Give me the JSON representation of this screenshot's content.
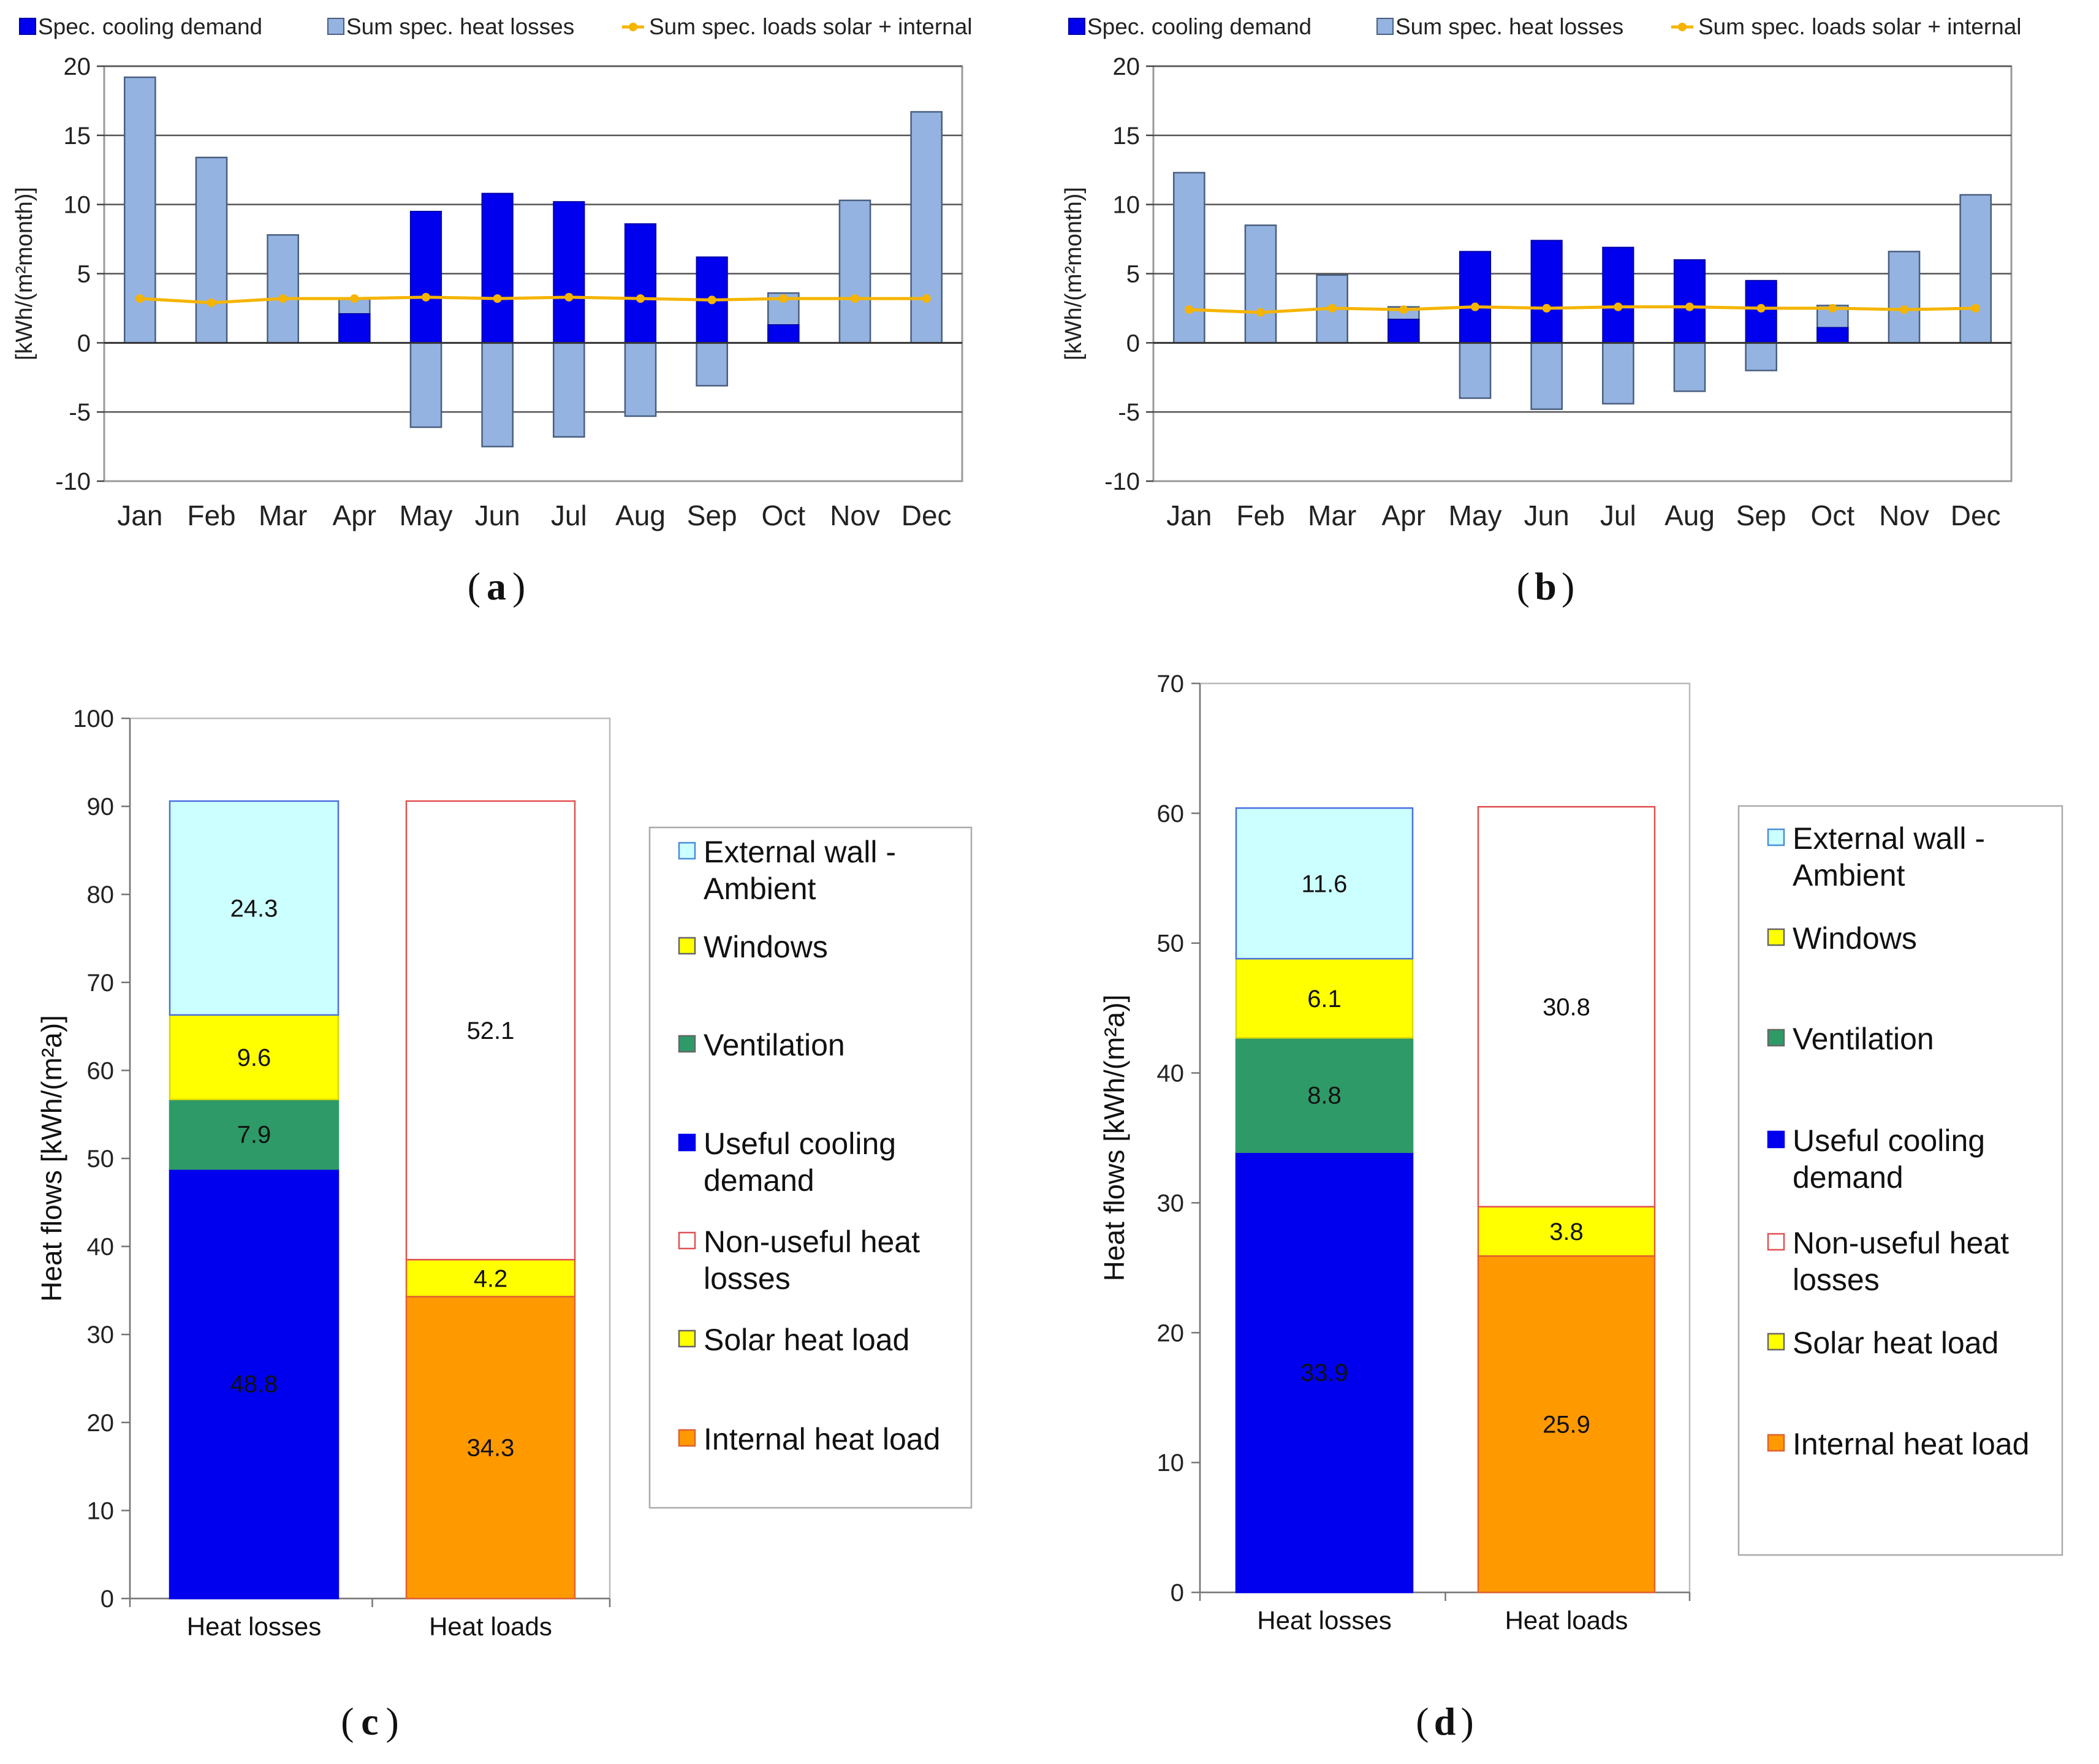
{
  "chart_data": [
    {
      "id": "a",
      "type": "bar",
      "caption": "(a)",
      "caption_letter": "a",
      "ylabel": "[kWh/(m²month)]",
      "ylim": [
        -10,
        20
      ],
      "yticks": [
        -10,
        -5,
        0,
        5,
        10,
        15,
        20
      ],
      "categories": [
        "Jan",
        "Feb",
        "Mar",
        "Apr",
        "May",
        "Jun",
        "Jul",
        "Aug",
        "Sep",
        "Oct",
        "Nov",
        "Dec"
      ],
      "legend": [
        "Spec. cooling demand",
        "Sum spec. heat losses",
        "Sum spec. loads solar + internal"
      ],
      "series": [
        {
          "name": "Spec. cooling demand",
          "color": "#0000ee",
          "values": [
            0,
            0,
            0,
            2.1,
            9.5,
            10.8,
            10.2,
            8.6,
            6.2,
            1.3,
            0,
            0
          ]
        },
        {
          "name": "Sum spec. heat losses",
          "color": "#95b3e0",
          "values": [
            19.2,
            13.4,
            7.8,
            3.2,
            -6.1,
            -7.5,
            -6.8,
            -5.3,
            -3.1,
            3.6,
            10.3,
            16.7
          ]
        },
        {
          "name": "Sum spec. loads solar + internal",
          "color": "#f5b400",
          "values": [
            3.2,
            2.9,
            3.2,
            3.2,
            3.3,
            3.2,
            3.3,
            3.2,
            3.1,
            3.2,
            3.2,
            3.2
          ]
        }
      ]
    },
    {
      "id": "b",
      "type": "bar",
      "caption": "(b)",
      "caption_letter": "b",
      "ylabel": "[kWh/(m²month)]",
      "ylim": [
        -10,
        20
      ],
      "yticks": [
        -10,
        -5,
        0,
        5,
        10,
        15,
        20
      ],
      "categories": [
        "Jan",
        "Feb",
        "Mar",
        "Apr",
        "May",
        "Jun",
        "Jul",
        "Aug",
        "Sep",
        "Oct",
        "Nov",
        "Dec"
      ],
      "legend": [
        "Spec. cooling demand",
        "Sum spec. heat losses",
        "Sum spec. loads solar + internal"
      ],
      "series": [
        {
          "name": "Spec. cooling demand",
          "color": "#0000ee",
          "values": [
            0,
            0,
            0,
            1.7,
            6.6,
            7.4,
            6.9,
            6.0,
            4.5,
            1.1,
            0,
            0
          ]
        },
        {
          "name": "Sum spec. heat losses",
          "color": "#95b3e0",
          "values": [
            12.3,
            8.5,
            4.9,
            2.6,
            -4.0,
            -4.8,
            -4.4,
            -3.5,
            -2.0,
            2.7,
            6.6,
            10.7
          ]
        },
        {
          "name": "Sum spec. loads solar + internal",
          "color": "#f5b400",
          "values": [
            2.4,
            2.2,
            2.5,
            2.4,
            2.6,
            2.5,
            2.6,
            2.6,
            2.5,
            2.5,
            2.4,
            2.5
          ]
        }
      ]
    },
    {
      "id": "c",
      "type": "stacked-bar",
      "caption": "(c)",
      "caption_letter": "c",
      "ylabel": "Heat flows [kWh/(m²a)]",
      "ylim": [
        0,
        100
      ],
      "yticks": [
        0,
        10,
        20,
        30,
        40,
        50,
        60,
        70,
        80,
        90,
        100
      ],
      "categories": [
        "Heat losses",
        "Heat loads"
      ],
      "stacks": [
        [
          {
            "name": "Useful cooling demand",
            "value": 48.8,
            "label": "48.8",
            "color": "#0000ee",
            "stroke": "#0000ee"
          },
          {
            "name": "Ventilation",
            "value": 7.9,
            "label": "7.9",
            "color": "#2e9a68",
            "stroke": "#2e9a68"
          },
          {
            "name": "Windows",
            "value": 9.6,
            "label": "9.6",
            "color": "#ffff00",
            "stroke": "#d8d800"
          },
          {
            "name": "External wall - Ambient",
            "value": 24.3,
            "label": "24.3",
            "color": "#ccffff",
            "stroke": "#4a6fe0"
          }
        ],
        [
          {
            "name": "Internal heat load",
            "value": 34.3,
            "label": "34.3",
            "color": "#ff9900",
            "stroke": "#e06030"
          },
          {
            "name": "Solar heat load",
            "value": 4.2,
            "label": "4.2",
            "color": "#ffff00",
            "stroke": "#e06030"
          },
          {
            "name": "Non-useful heat losses",
            "value": 52.1,
            "label": "52.1",
            "color": "#ffffff",
            "stroke": "#e05050"
          }
        ]
      ],
      "legend": [
        {
          "lines": [
            "External wall -",
            "Ambient"
          ],
          "color": "#ccffff",
          "stroke": "#4a8ae0"
        },
        {
          "lines": [
            "Windows"
          ],
          "color": "#ffff00",
          "stroke": "#666"
        },
        {
          "lines": [
            "Ventilation"
          ],
          "color": "#2e9a68",
          "stroke": "#666"
        },
        {
          "lines": [
            "Useful cooling",
            "demand"
          ],
          "color": "#0000ee",
          "stroke": "#0000ee"
        },
        {
          "lines": [
            "Non-useful heat",
            "losses"
          ],
          "color": "#ffffff",
          "stroke": "#e05050"
        },
        {
          "lines": [
            "Solar heat load"
          ],
          "color": "#ffff00",
          "stroke": "#666"
        },
        {
          "lines": [
            "Internal heat load"
          ],
          "color": "#ff9900",
          "stroke": "#e06030"
        }
      ]
    },
    {
      "id": "d",
      "type": "stacked-bar",
      "caption": "(d)",
      "caption_letter": "d",
      "ylabel": "Heat flows [kWh/(m²a)]",
      "ylim": [
        0,
        70
      ],
      "yticks": [
        0,
        10,
        20,
        30,
        40,
        50,
        60,
        70
      ],
      "categories": [
        "Heat losses",
        "Heat loads"
      ],
      "stacks": [
        [
          {
            "name": "Useful cooling demand",
            "value": 33.9,
            "label": "33.9",
            "color": "#0000ee",
            "stroke": "#0000ee"
          },
          {
            "name": "Ventilation",
            "value": 8.8,
            "label": "8.8",
            "color": "#2e9a68",
            "stroke": "#2e9a68"
          },
          {
            "name": "Windows",
            "value": 6.1,
            "label": "6.1",
            "color": "#ffff00",
            "stroke": "#d8d800"
          },
          {
            "name": "External wall - Ambient",
            "value": 11.6,
            "label": "11.6",
            "color": "#ccffff",
            "stroke": "#4a6fe0"
          }
        ],
        [
          {
            "name": "Internal heat load",
            "value": 25.9,
            "label": "25.9",
            "color": "#ff9900",
            "stroke": "#e06030"
          },
          {
            "name": "Solar heat load",
            "value": 3.8,
            "label": "3.8",
            "color": "#ffff00",
            "stroke": "#e06030"
          },
          {
            "name": "Non-useful heat losses",
            "value": 30.8,
            "label": "30.8",
            "color": "#ffffff",
            "stroke": "#e05050"
          }
        ]
      ],
      "legend": [
        {
          "lines": [
            "External wall -",
            "Ambient"
          ],
          "color": "#ccffff",
          "stroke": "#4a8ae0"
        },
        {
          "lines": [
            "Windows"
          ],
          "color": "#ffff00",
          "stroke": "#666"
        },
        {
          "lines": [
            "Ventilation"
          ],
          "color": "#2e9a68",
          "stroke": "#666"
        },
        {
          "lines": [
            "Useful cooling",
            "demand"
          ],
          "color": "#0000ee",
          "stroke": "#0000ee"
        },
        {
          "lines": [
            "Non-useful heat",
            "losses"
          ],
          "color": "#ffffff",
          "stroke": "#e05050"
        },
        {
          "lines": [
            "Solar heat load"
          ],
          "color": "#ffff00",
          "stroke": "#666"
        },
        {
          "lines": [
            "Internal heat load"
          ],
          "color": "#ff9900",
          "stroke": "#e06030"
        }
      ]
    }
  ]
}
